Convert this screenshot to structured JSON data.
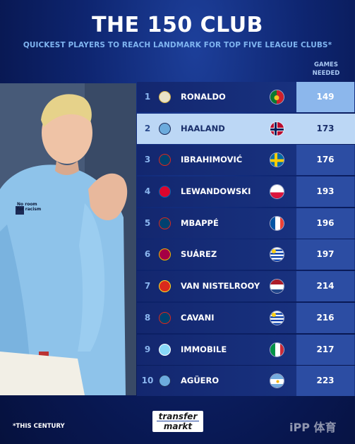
{
  "header": {
    "title": "THE 150 CLUB",
    "subtitle": "QUICKEST PLAYERS TO REACH LANDMARK FOR TOP FIVE LEAGUE CLUBS*"
  },
  "columns": {
    "games_header": "GAMES NEEDED"
  },
  "rows": [
    {
      "rank": "1",
      "name": "RONALDO",
      "games": "149",
      "club": "real-madrid-badge",
      "flag": "portugal-flag"
    },
    {
      "rank": "2",
      "name": "HAALAND",
      "games": "173",
      "club": "man-city-badge",
      "flag": "norway-flag"
    },
    {
      "rank": "3",
      "name": "IBRAHIMOVIĆ",
      "games": "176",
      "club": "psg-badge",
      "flag": "sweden-flag"
    },
    {
      "rank": "4",
      "name": "LEWANDOWSKI",
      "games": "193",
      "club": "bayern-badge",
      "flag": "poland-flag"
    },
    {
      "rank": "5",
      "name": "MBAPPÉ",
      "games": "196",
      "club": "psg-badge",
      "flag": "france-flag"
    },
    {
      "rank": "6",
      "name": "SUÁREZ",
      "games": "197",
      "club": "barcelona-badge",
      "flag": "uruguay-flag"
    },
    {
      "rank": "7",
      "name": "VAN NISTELROOY",
      "games": "214",
      "club": "man-united-badge",
      "flag": "netherlands-flag"
    },
    {
      "rank": "8",
      "name": "CAVANI",
      "games": "216",
      "club": "psg-badge",
      "flag": "uruguay-flag"
    },
    {
      "rank": "9",
      "name": "IMMOBILE",
      "games": "217",
      "club": "lazio-badge",
      "flag": "italy-flag"
    },
    {
      "rank": "10",
      "name": "AGÜERO",
      "games": "223",
      "club": "man-city-badge",
      "flag": "argentina-flag"
    }
  ],
  "photo": {
    "sleeve_text": "No room for racism"
  },
  "footer": {
    "footnote": "*THIS CENTURY",
    "logo_top": "transfer",
    "logo_bottom": "markt",
    "watermark": "iPP 体育"
  },
  "colors": {
    "background": "#0e2570",
    "row": "#1a3585",
    "games_cell": "#2c4da3",
    "highlight": "#bcd7f5",
    "subtitle": "#7fb4f0"
  }
}
